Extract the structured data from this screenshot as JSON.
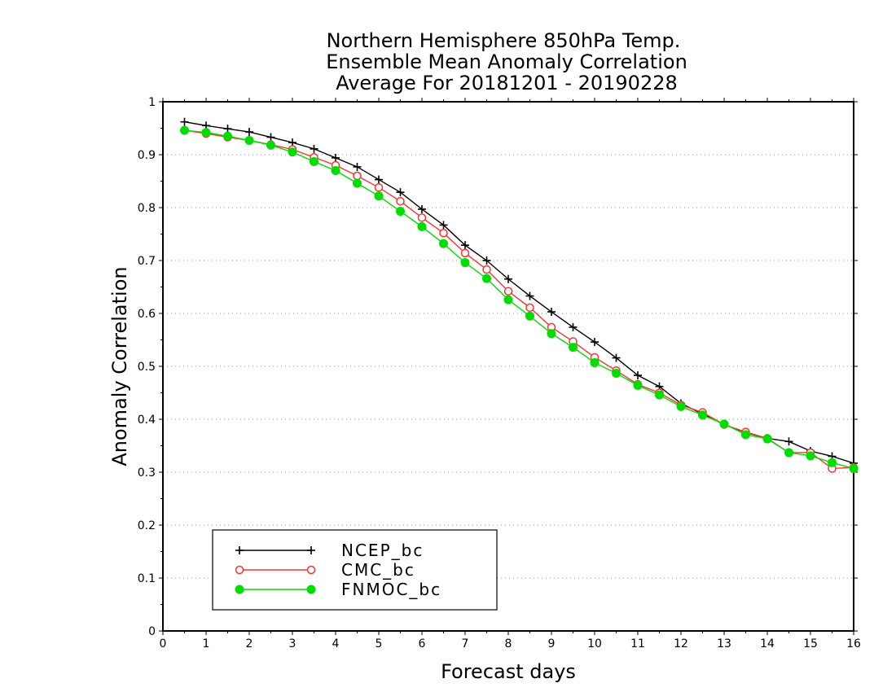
{
  "chart_data": {
    "type": "line",
    "title_lines": [
      "Northern Hemisphere 850hPa Temp.",
      "Ensemble Mean Anomaly Correlation",
      "Average For 20181201 - 20190228"
    ],
    "xlabel": "Forecast days",
    "ylabel": "Anomaly Correlation",
    "xlim": [
      0,
      16
    ],
    "ylim": [
      0,
      1
    ],
    "x_ticks": [
      "0",
      "1",
      "2",
      "3",
      "4",
      "5",
      "6",
      "7",
      "8",
      "9",
      "10",
      "11",
      "12",
      "13",
      "14",
      "15",
      "16"
    ],
    "y_ticks": [
      "0",
      "0.1",
      "0.2",
      "0.3",
      "0.4",
      "0.5",
      "0.6",
      "0.7",
      "0.8",
      "0.9",
      "1"
    ],
    "grid": "horizontal dotted",
    "legend_position": "bottom-left",
    "x": [
      0.5,
      1,
      1.5,
      2,
      2.5,
      3,
      3.5,
      4,
      4.5,
      5,
      5.5,
      6,
      6.5,
      7,
      7.5,
      8,
      8.5,
      9,
      9.5,
      10,
      10.5,
      11,
      11.5,
      12,
      12.5,
      13,
      13.5,
      14,
      14.5,
      15,
      15.5,
      16
    ],
    "series": [
      {
        "name": "NCEP_bc",
        "color": "#000000",
        "marker": "plus",
        "values": [
          0.962,
          0.955,
          0.949,
          0.943,
          0.933,
          0.923,
          0.911,
          0.894,
          0.877,
          0.853,
          0.829,
          0.797,
          0.767,
          0.729,
          0.7,
          0.665,
          0.633,
          0.603,
          0.574,
          0.546,
          0.516,
          0.483,
          0.462,
          0.43,
          0.41,
          0.39,
          0.375,
          0.364,
          0.358,
          0.34,
          0.33,
          0.317
        ]
      },
      {
        "name": "CMC_bc",
        "color": "#ff3030",
        "marker": "open-circle",
        "values": [
          0.946,
          0.94,
          0.933,
          0.927,
          0.919,
          0.91,
          0.895,
          0.88,
          0.86,
          0.838,
          0.812,
          0.781,
          0.752,
          0.714,
          0.683,
          0.642,
          0.611,
          0.574,
          0.547,
          0.517,
          0.492,
          0.466,
          0.45,
          0.427,
          0.413,
          0.39,
          0.376,
          0.364,
          0.337,
          0.337,
          0.307,
          0.309
        ]
      },
      {
        "name": "FNMOC_bc",
        "color": "#00dd00",
        "marker": "filled-circle",
        "values": [
          0.946,
          0.942,
          0.935,
          0.927,
          0.918,
          0.905,
          0.887,
          0.87,
          0.846,
          0.822,
          0.793,
          0.764,
          0.732,
          0.696,
          0.666,
          0.626,
          0.595,
          0.562,
          0.536,
          0.507,
          0.487,
          0.464,
          0.446,
          0.424,
          0.408,
          0.391,
          0.371,
          0.363,
          0.337,
          0.331,
          0.318,
          0.307
        ]
      }
    ]
  }
}
